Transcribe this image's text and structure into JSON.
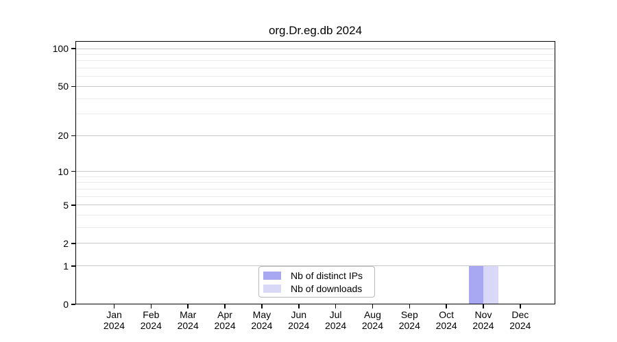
{
  "title": "org.Dr.eg.db 2024",
  "colors": {
    "distinct_ips": "#a8a8f2",
    "downloads": "#d9d9f7",
    "grid_major": "#c9c9c9",
    "grid_minor": "#ebebeb",
    "axis": "#000000",
    "legend_border": "#b8b8b8"
  },
  "legend": {
    "items": [
      {
        "label": "Nb of distinct IPs",
        "color": "#a8a8f2"
      },
      {
        "label": "Nb of downloads",
        "color": "#d9d9f7"
      }
    ]
  },
  "chart_data": {
    "type": "bar",
    "title": "org.Dr.eg.db 2024",
    "categories": [
      "Jan",
      "Feb",
      "Mar",
      "Apr",
      "May",
      "Jun",
      "Jul",
      "Aug",
      "Sep",
      "Oct",
      "Nov",
      "Dec"
    ],
    "year_label": "2024",
    "series": [
      {
        "name": "Nb of distinct IPs",
        "color": "#a8a8f2",
        "values": [
          0,
          0,
          0,
          0,
          0,
          0,
          0,
          0,
          0,
          0,
          1,
          0
        ]
      },
      {
        "name": "Nb of downloads",
        "color": "#d9d9f7",
        "values": [
          0,
          0,
          0,
          0,
          0,
          0,
          0,
          0,
          0,
          0,
          1,
          0
        ]
      }
    ],
    "y_scale": "log1p",
    "y_ticks": [
      0,
      1,
      2,
      5,
      10,
      20,
      50,
      100
    ],
    "y_minor_gridlines": [
      3,
      4,
      6,
      7,
      8,
      9,
      30,
      40,
      60,
      70,
      80,
      90
    ],
    "ylim": [
      0,
      100
    ],
    "xlabel": "",
    "ylabel": "",
    "grid": "horizontal-only",
    "legend_position": "bottom-center-inside"
  }
}
